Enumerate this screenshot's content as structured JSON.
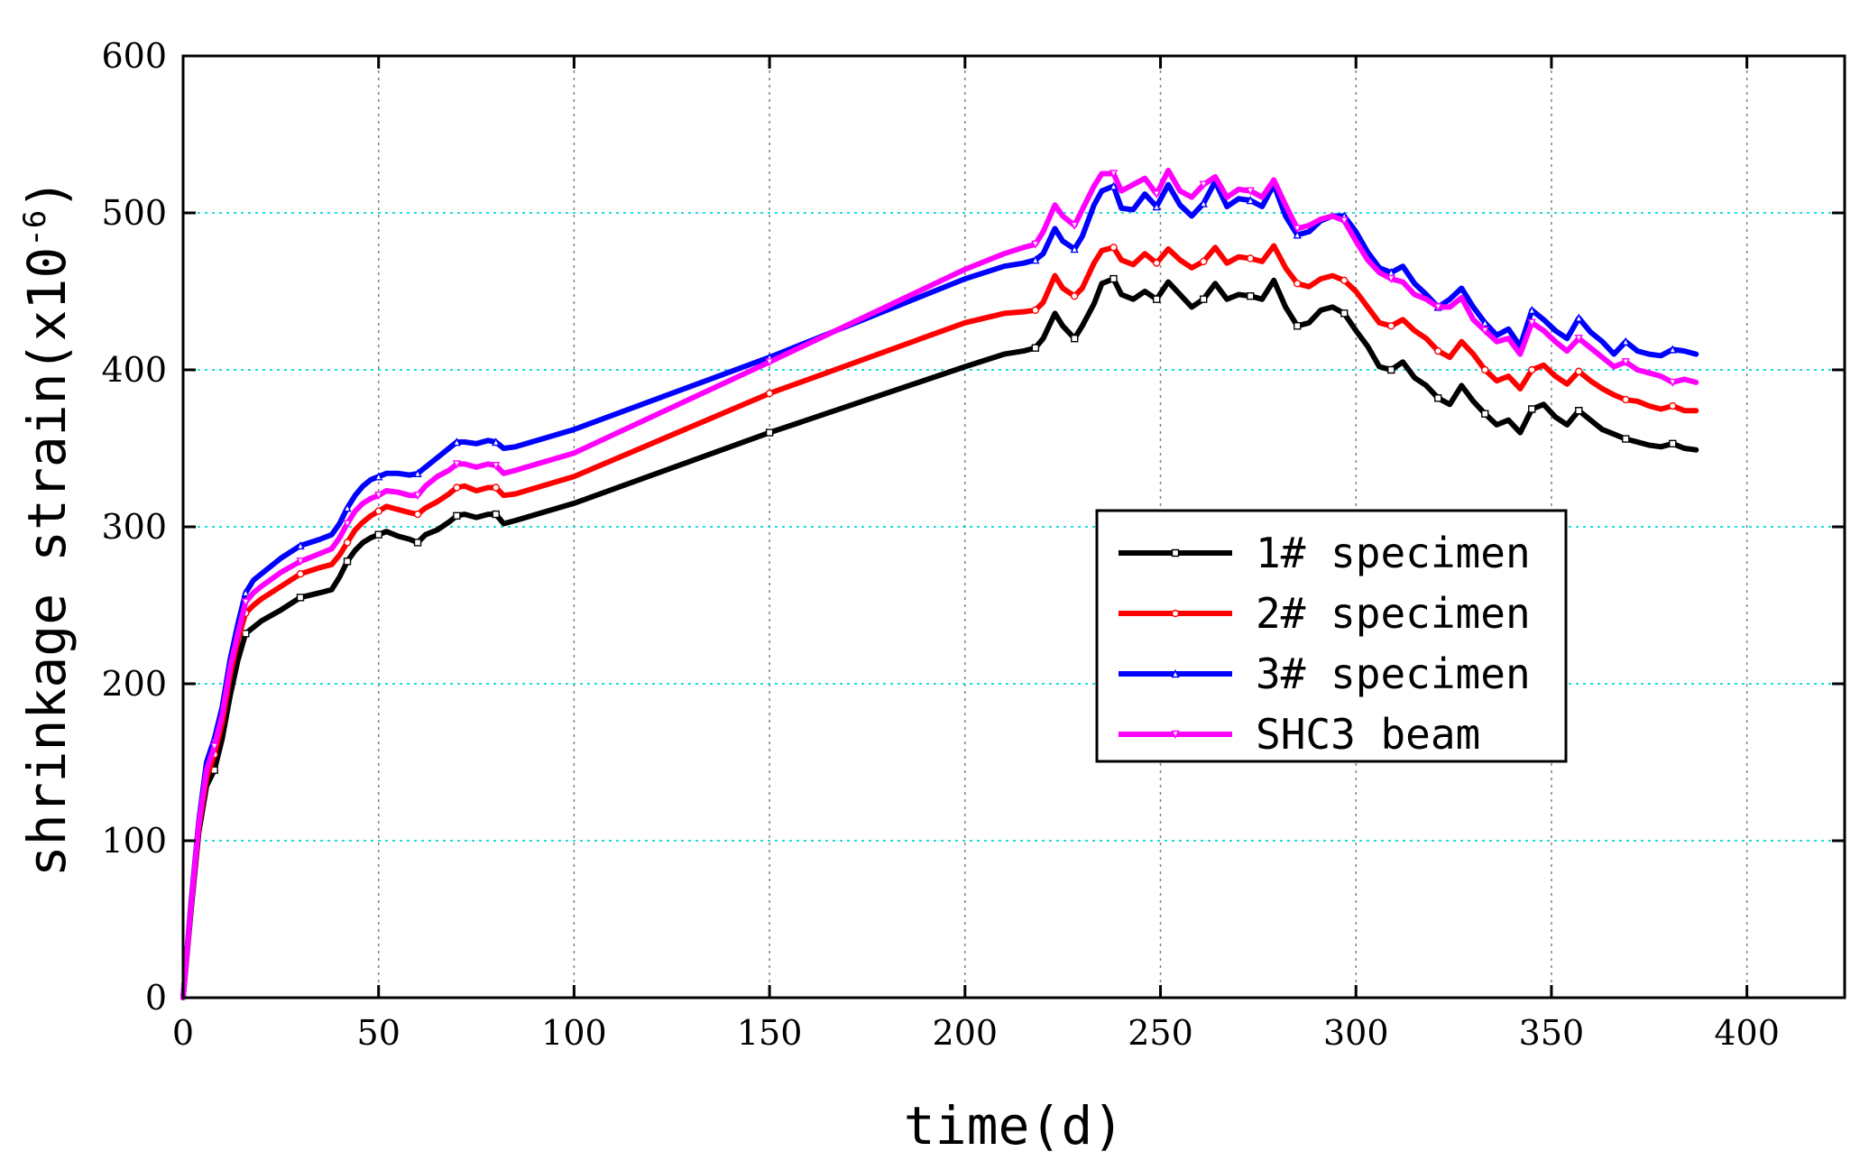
{
  "chart_data": {
    "type": "line",
    "title": "",
    "xlabel": "time(d)",
    "ylabel": "shrinkage strain(x10",
    "ylabel_exponent": "-6",
    "ylabel_close": ")",
    "xlim": [
      0,
      425
    ],
    "ylim": [
      0,
      600
    ],
    "xticks": [
      0,
      50,
      100,
      150,
      200,
      250,
      300,
      350,
      400
    ],
    "yticks": [
      0,
      100,
      200,
      300,
      400,
      500,
      600
    ],
    "grid": true,
    "legend_position": "center-right",
    "x": [
      0,
      2,
      4,
      6,
      8,
      10,
      12,
      14,
      16,
      18,
      20,
      25,
      30,
      35,
      38,
      40,
      42,
      44,
      46,
      48,
      50,
      52,
      55,
      58,
      60,
      62,
      65,
      68,
      70,
      72,
      75,
      78,
      80,
      82,
      85,
      100,
      150,
      200,
      210,
      215,
      218,
      220,
      223,
      225,
      228,
      230,
      233,
      235,
      238,
      240,
      243,
      246,
      249,
      252,
      255,
      258,
      261,
      264,
      267,
      270,
      273,
      276,
      279,
      282,
      285,
      288,
      291,
      294,
      297,
      300,
      303,
      306,
      309,
      312,
      315,
      318,
      321,
      324,
      327,
      330,
      333,
      336,
      339,
      342,
      345,
      348,
      351,
      354,
      357,
      360,
      363,
      366,
      369,
      372,
      375,
      378,
      381,
      384,
      387
    ],
    "series": [
      {
        "name": "1# specimen",
        "color": "#000000",
        "marker": "square",
        "values": [
          0,
          55,
          105,
          135,
          145,
          165,
          192,
          215,
          232,
          236,
          240,
          247,
          255,
          258,
          260,
          268,
          278,
          285,
          290,
          293,
          295,
          297,
          294,
          292,
          290,
          295,
          298,
          303,
          307,
          308,
          306,
          308,
          308,
          302,
          304,
          315,
          360,
          402,
          410,
          412,
          414,
          420,
          436,
          428,
          420,
          428,
          442,
          455,
          458,
          448,
          445,
          450,
          445,
          456,
          448,
          440,
          445,
          455,
          445,
          448,
          447,
          445,
          457,
          440,
          428,
          430,
          438,
          440,
          436,
          425,
          415,
          402,
          400,
          405,
          395,
          390,
          382,
          378,
          390,
          380,
          372,
          365,
          368,
          360,
          375,
          378,
          370,
          365,
          374,
          368,
          362,
          359,
          356,
          354,
          352,
          351,
          353,
          350,
          349
        ]
      },
      {
        "name": "2# specimen",
        "color": "#ff0000",
        "marker": "circle",
        "values": [
          0,
          58,
          108,
          140,
          155,
          175,
          205,
          228,
          245,
          250,
          254,
          262,
          270,
          274,
          276,
          282,
          290,
          298,
          303,
          307,
          310,
          313,
          311,
          309,
          308,
          312,
          316,
          321,
          325,
          326,
          323,
          325,
          325,
          320,
          321,
          332,
          385,
          430,
          436,
          437,
          438,
          443,
          460,
          452,
          447,
          452,
          468,
          476,
          478,
          470,
          467,
          474,
          468,
          477,
          470,
          465,
          469,
          478,
          468,
          472,
          471,
          469,
          479,
          465,
          455,
          453,
          458,
          460,
          457,
          450,
          440,
          430,
          428,
          432,
          425,
          420,
          412,
          408,
          418,
          410,
          400,
          393,
          396,
          388,
          400,
          403,
          396,
          391,
          399,
          393,
          388,
          384,
          381,
          380,
          377,
          375,
          377,
          374,
          374
        ]
      },
      {
        "name": "3# specimen",
        "color": "#0000ff",
        "marker": "triangle-up",
        "values": [
          0,
          60,
          112,
          150,
          165,
          185,
          215,
          238,
          258,
          266,
          270,
          280,
          288,
          292,
          295,
          302,
          312,
          320,
          326,
          330,
          332,
          334,
          334,
          333,
          334,
          338,
          344,
          350,
          354,
          354,
          353,
          355,
          354,
          350,
          351,
          362,
          408,
          458,
          466,
          468,
          470,
          474,
          490,
          482,
          477,
          485,
          505,
          514,
          517,
          503,
          502,
          512,
          504,
          518,
          505,
          498,
          506,
          520,
          504,
          509,
          508,
          504,
          518,
          498,
          486,
          488,
          495,
          498,
          498,
          488,
          475,
          465,
          462,
          466,
          455,
          448,
          440,
          445,
          452,
          440,
          430,
          422,
          426,
          415,
          438,
          432,
          425,
          420,
          433,
          424,
          418,
          410,
          418,
          412,
          410,
          409,
          413,
          412,
          410
        ]
      },
      {
        "name": "SHC3 beam",
        "color": "#ff00ff",
        "marker": "triangle-down",
        "values": [
          0,
          58,
          110,
          145,
          160,
          180,
          210,
          232,
          252,
          258,
          262,
          271,
          278,
          283,
          286,
          293,
          302,
          310,
          315,
          318,
          320,
          323,
          322,
          320,
          320,
          326,
          332,
          336,
          340,
          340,
          338,
          340,
          339,
          334,
          336,
          347,
          405,
          464,
          474,
          478,
          480,
          488,
          505,
          498,
          492,
          502,
          517,
          525,
          525,
          514,
          518,
          522,
          512,
          527,
          514,
          510,
          518,
          523,
          510,
          515,
          514,
          510,
          521,
          505,
          490,
          492,
          496,
          498,
          495,
          482,
          470,
          462,
          458,
          456,
          448,
          445,
          440,
          440,
          446,
          432,
          425,
          418,
          420,
          410,
          430,
          425,
          418,
          412,
          420,
          414,
          408,
          402,
          405,
          400,
          398,
          396,
          392,
          394,
          392
        ]
      }
    ]
  }
}
